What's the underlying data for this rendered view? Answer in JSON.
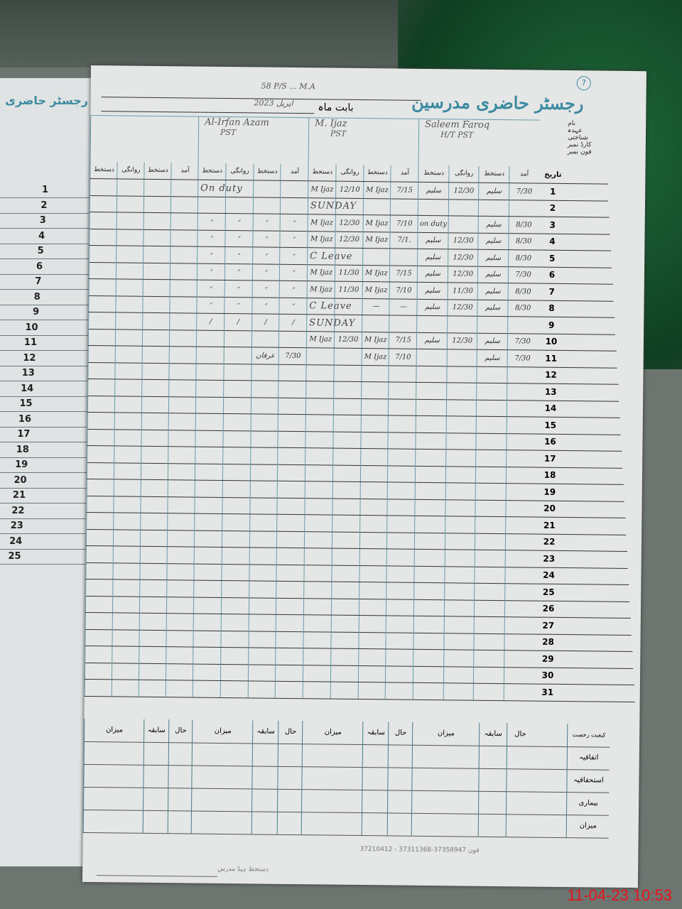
{
  "register": {
    "page_number": "7",
    "title": "رجسٹر حاضری مدرسین",
    "school_handwritten": "58 P/S ... M.A",
    "month_label": "بابت ماہ",
    "month_value": "اپریل 2023",
    "left_page_title": "رجسٹر حاضری",
    "header_labels": [
      "نام",
      "عہدہ",
      "شناختی کارڈ نمبر",
      "فون نمبر",
      "تاریخ"
    ],
    "teachers": [
      {
        "name": "Saleem Faroq",
        "designation": "H/T PST"
      },
      {
        "name": "M. Ijaz",
        "designation": "PST"
      },
      {
        "name": "Al-Irfan Azam",
        "designation": "PST"
      },
      {
        "name": "",
        "designation": ""
      }
    ],
    "column_headers": [
      "آمد",
      "دستخط",
      "روانگی",
      "دستخط"
    ]
  },
  "rows": [
    {
      "date": "1",
      "cells": [
        "7/30",
        "سلیم",
        "12/30",
        "سلیم",
        "7/15",
        "M Ijaz",
        "12/10",
        "M Ijaz",
        "",
        "",
        "",
        "",
        "",
        "",
        "",
        ""
      ],
      "note": "On duty",
      "note_group": 2
    },
    {
      "date": "2",
      "cells": [
        "",
        "",
        "",
        "",
        "",
        "",
        "",
        "",
        "",
        "",
        "",
        "",
        "",
        "",
        "",
        ""
      ],
      "note": "SUNDAY",
      "note_group": 1
    },
    {
      "date": "3",
      "cells": [
        "8/30",
        "سلیم",
        "",
        "on duty",
        "7/10",
        "M Ijaz",
        "12/30",
        "M Ijaz",
        "״",
        "״",
        "״",
        "״",
        "",
        "",
        "",
        ""
      ],
      "note": "",
      "note_group": 0
    },
    {
      "date": "4",
      "cells": [
        "8/30",
        "سلیم",
        "12/30",
        "سلیم",
        "7/1.",
        "M Ijaz",
        "12/30",
        "M Ijaz",
        "״",
        "״",
        "״",
        "״",
        "",
        "",
        "",
        ""
      ],
      "note": "",
      "note_group": 0
    },
    {
      "date": "5",
      "cells": [
        "8/30",
        "سلیم",
        "12/30",
        "سلیم",
        "",
        "",
        "",
        "",
        "״",
        "״",
        "״",
        "״",
        "",
        "",
        "",
        ""
      ],
      "note": "C Leave",
      "note_group": 1
    },
    {
      "date": "6",
      "cells": [
        "7/30",
        "سلیم",
        "12/30",
        "سلیم",
        "7/15",
        "M Ijaz",
        "11/30",
        "M Ijaz",
        "״",
        "״",
        "״",
        "״",
        "",
        "",
        "",
        ""
      ],
      "note": "",
      "note_group": 0
    },
    {
      "date": "7",
      "cells": [
        "8/30",
        "سلیم",
        "11/30",
        "سلیم",
        "7/10",
        "M Ijaz",
        "11/30",
        "M Ijaz",
        "״",
        "״",
        "״",
        "״",
        "",
        "",
        "",
        ""
      ],
      "note": "",
      "note_group": 0
    },
    {
      "date": "8",
      "cells": [
        "8/30",
        "سلیم",
        "12/30",
        "سلیم",
        "—",
        "—",
        "",
        "",
        "״",
        "״",
        "״",
        "״",
        "",
        "",
        "",
        ""
      ],
      "note": "C Leave",
      "note_group": 1
    },
    {
      "date": "9",
      "cells": [
        "",
        "",
        "",
        "",
        "",
        "",
        "",
        "",
        "/",
        "/",
        "/",
        "/",
        "",
        "",
        "",
        ""
      ],
      "note": "SUNDAY",
      "note_group": 1
    },
    {
      "date": "10",
      "cells": [
        "7/30",
        "سلیم",
        "12/30",
        "سلیم",
        "7/15",
        "M Ijaz",
        "12/30",
        "M Ijaz",
        "",
        "",
        "",
        "",
        "",
        "",
        "",
        ""
      ],
      "note": "",
      "note_group": 0
    },
    {
      "date": "11",
      "cells": [
        "7/30",
        "سلیم",
        "",
        "",
        "7/10",
        "M Ijaz",
        "",
        "",
        "7/30",
        "عرفان",
        "",
        "",
        "",
        "",
        "",
        ""
      ],
      "note": "",
      "note_group": 0
    },
    {
      "date": "12",
      "cells": [],
      "note": ""
    },
    {
      "date": "13",
      "cells": [],
      "note": ""
    },
    {
      "date": "14",
      "cells": [],
      "note": ""
    },
    {
      "date": "15",
      "cells": [],
      "note": ""
    },
    {
      "date": "16",
      "cells": [],
      "note": ""
    },
    {
      "date": "17",
      "cells": [],
      "note": ""
    },
    {
      "date": "18",
      "cells": [],
      "note": ""
    },
    {
      "date": "19",
      "cells": [],
      "note": ""
    },
    {
      "date": "20",
      "cells": [],
      "note": ""
    },
    {
      "date": "21",
      "cells": [],
      "note": ""
    },
    {
      "date": "22",
      "cells": [],
      "note": ""
    },
    {
      "date": "23",
      "cells": [],
      "note": ""
    },
    {
      "date": "24",
      "cells": [],
      "note": ""
    },
    {
      "date": "25",
      "cells": [],
      "note": ""
    },
    {
      "date": "26",
      "cells": [],
      "note": ""
    },
    {
      "date": "27",
      "cells": [],
      "note": ""
    },
    {
      "date": "28",
      "cells": [],
      "note": ""
    },
    {
      "date": "29",
      "cells": [],
      "note": ""
    },
    {
      "date": "30",
      "cells": [],
      "note": ""
    },
    {
      "date": "31",
      "cells": [],
      "note": ""
    }
  ],
  "summary": {
    "corner_label": "کیفیت رخصت",
    "group_headers": [
      "حال",
      "سابقہ",
      "میزان"
    ],
    "row_labels": [
      "اتفاقیہ",
      "استحقاقیہ",
      "بیماری",
      "میزان"
    ]
  },
  "footer": {
    "printer": "37210412 - 37311368-37358947 فون",
    "signature_label": "دستخط ہیڈ مدرس"
  },
  "left_page_dates": [
    "1",
    "2",
    "3",
    "4",
    "5",
    "6",
    "7",
    "8",
    "9",
    "10",
    "11",
    "12",
    "13",
    "14",
    "15",
    "16",
    "17",
    "18",
    "19",
    "20",
    "21",
    "22",
    "23",
    "24",
    "25"
  ],
  "timestamp": "11-04-23  10:53",
  "colors": {
    "print_blue": "#3d8aa0",
    "timestamp_red": "#e8131b",
    "cloth_green": "#1f6a3a"
  }
}
